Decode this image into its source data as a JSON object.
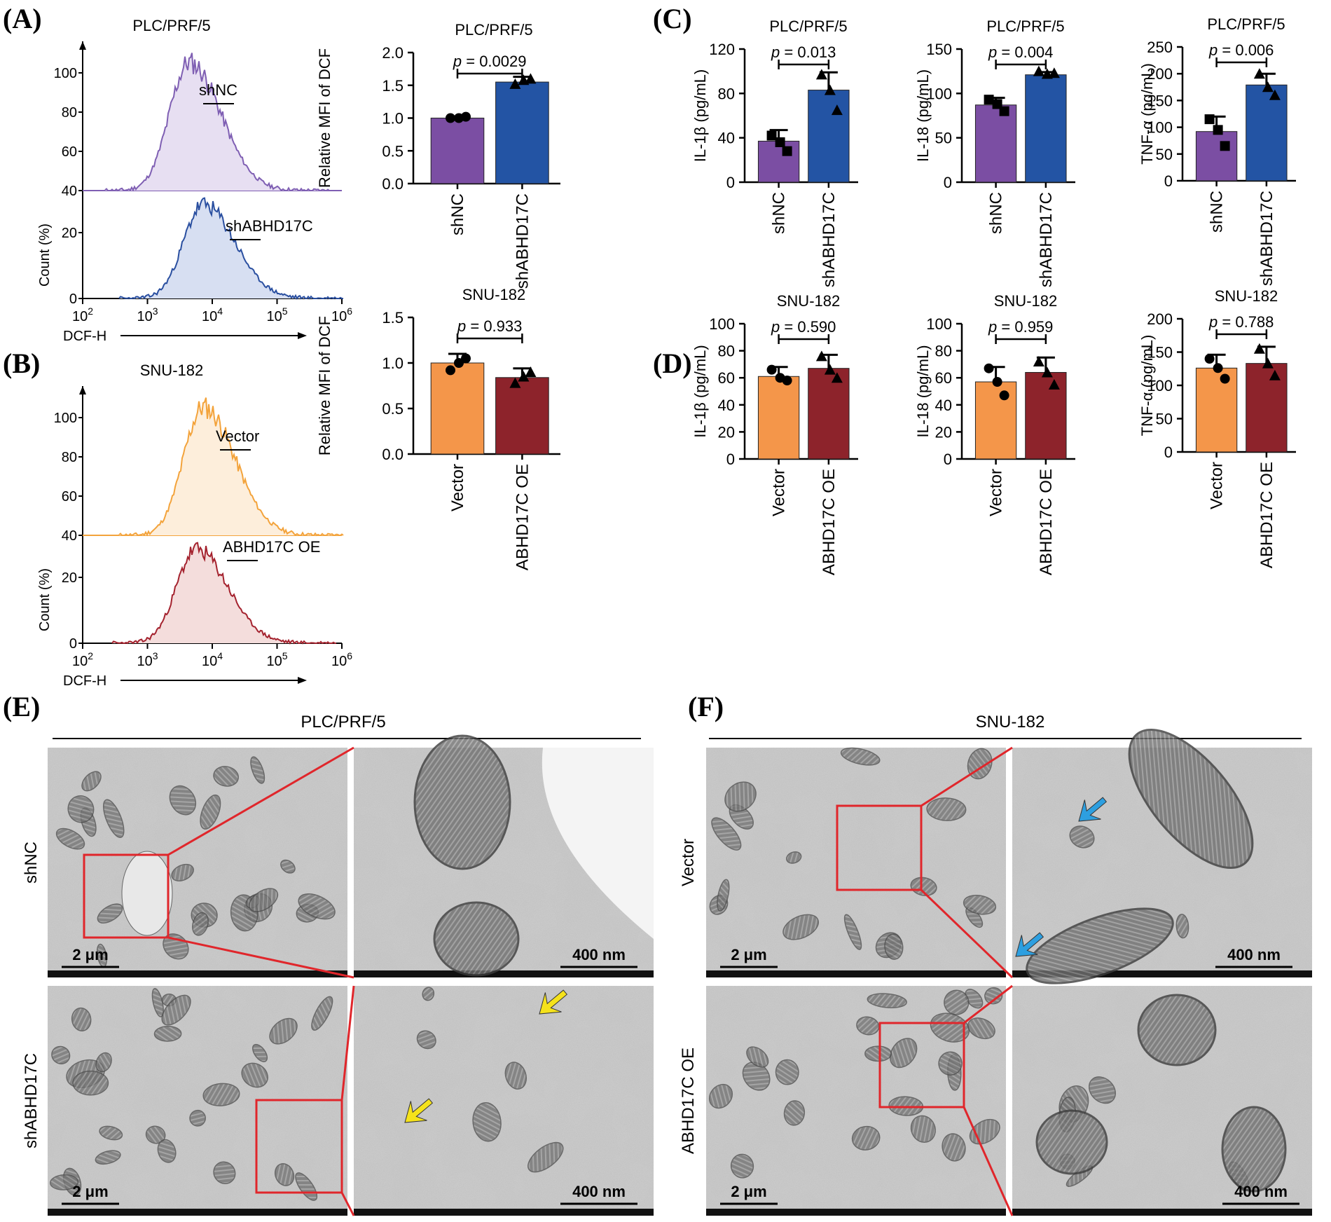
{
  "panels": [
    {
      "id": "A",
      "label": "(A)"
    },
    {
      "id": "B",
      "label": "(B)"
    },
    {
      "id": "C",
      "label": "(C)"
    },
    {
      "id": "D",
      "label": "(D)"
    },
    {
      "id": "E",
      "label": "(E)"
    },
    {
      "id": "F",
      "label": "(F)"
    }
  ],
  "colors": {
    "shNC": "#7b4ea3",
    "shABHD17C": "#2354a4",
    "vector": "#f4964a",
    "abhd17c_oe": "#8d232b",
    "hist_top_A": "#7f5fb3",
    "hist_bot_A": "#2a4fa0",
    "hist_top_B": "#f3a33b",
    "hist_bot_B": "#a4222e",
    "fill_top_A": "#e7dff2",
    "fill_bot_A": "#d7dff2",
    "fill_top_B": "#fdeedb",
    "fill_bot_B": "#f4dddc",
    "box": "#e0262b",
    "yellow_arrow": "#f5e21b",
    "blue_arrow": "#2d9fe0"
  },
  "chart_data": [
    {
      "id": "A-hist",
      "type": "histogram",
      "title": "PLC/PRF/5",
      "ylabel": "Count (%)",
      "xlabel": "DCF-H",
      "yticks_top": [
        "100",
        "80",
        "60",
        "40"
      ],
      "yticks_bottom": [
        "20",
        "0"
      ],
      "xticks": [
        {
          "base": "10",
          "exp": "2"
        },
        {
          "base": "10",
          "exp": "3"
        },
        {
          "base": "10",
          "exp": "4"
        },
        {
          "base": "10",
          "exp": "5"
        },
        {
          "base": "10",
          "exp": "6"
        }
      ],
      "series": [
        {
          "name": "shNC",
          "peak_log10": 3.7
        },
        {
          "name": "shABHD17C",
          "peak_log10": 3.9
        }
      ]
    },
    {
      "id": "A-bar",
      "type": "bar",
      "title": "PLC/PRF/5",
      "ylabel": "Relative MFI of DCF",
      "categories": [
        "shNC",
        "shABHD17C"
      ],
      "values": [
        1.0,
        1.55
      ],
      "errors": [
        0.02,
        0.08
      ],
      "points": [
        [
          1.0,
          1.0,
          1.02
        ],
        [
          1.52,
          1.58,
          1.6
        ]
      ],
      "markers": [
        "circle",
        "triangle"
      ],
      "yticks": [
        "0.0",
        "0.5",
        "1.0",
        "1.5",
        "2.0"
      ],
      "ylim": [
        0,
        2.0
      ],
      "p_label": "p = 0.0029"
    },
    {
      "id": "B-hist",
      "type": "histogram",
      "title": "SNU-182",
      "ylabel": "Count (%)",
      "xlabel": "DCF-H",
      "yticks_top": [
        "100",
        "80",
        "60",
        "40"
      ],
      "yticks_bottom": [
        "20",
        "0"
      ],
      "xticks": [
        {
          "base": "10",
          "exp": "2"
        },
        {
          "base": "10",
          "exp": "3"
        },
        {
          "base": "10",
          "exp": "4"
        },
        {
          "base": "10",
          "exp": "5"
        },
        {
          "base": "10",
          "exp": "6"
        }
      ],
      "series": [
        {
          "name": "Vector",
          "peak_log10": 3.9
        },
        {
          "name": "ABHD17C OE",
          "peak_log10": 3.85
        }
      ]
    },
    {
      "id": "B-bar",
      "type": "bar",
      "title": "SNU-182",
      "ylabel": "Relative MFI of DCF",
      "categories": [
        "Vector",
        "ABHD17C OE"
      ],
      "values": [
        1.0,
        0.84
      ],
      "errors": [
        0.1,
        0.1
      ],
      "points": [
        [
          0.92,
          1.0,
          1.05
        ],
        [
          0.78,
          0.85,
          0.9
        ]
      ],
      "markers": [
        "circle",
        "triangle"
      ],
      "yticks": [
        "0.0",
        "0.5",
        "1.0",
        "1.5"
      ],
      "ylim": [
        0,
        1.5
      ],
      "p_label": "p = 0.933"
    },
    {
      "id": "C1",
      "type": "bar",
      "title": "PLC/PRF/5",
      "ylabel": "IL-1β (pg/mL)",
      "categories": [
        "shNC",
        "shABHD17C"
      ],
      "values": [
        37,
        83
      ],
      "errors": [
        10,
        16
      ],
      "points": [
        [
          42,
          36,
          28
        ],
        [
          97,
          83,
          65
        ]
      ],
      "markers": [
        "square",
        "triangle"
      ],
      "yticks": [
        "0",
        "40",
        "80",
        "120"
      ],
      "ylim": [
        0,
        120
      ],
      "p_label": "p = 0.013"
    },
    {
      "id": "C2",
      "type": "bar",
      "title": "PLC/PRF/5",
      "ylabel": "IL-18 (pg/mL)",
      "categories": [
        "shNC",
        "shABHD17C"
      ],
      "values": [
        87,
        121
      ],
      "errors": [
        8,
        3
      ],
      "points": [
        [
          93,
          88,
          80
        ],
        [
          125,
          122,
          123
        ]
      ],
      "markers": [
        "square",
        "triangle"
      ],
      "yticks": [
        "0",
        "50",
        "100",
        "150"
      ],
      "ylim": [
        0,
        150
      ],
      "p_label": "p = 0.004"
    },
    {
      "id": "C3",
      "type": "bar",
      "title": "PLC/PRF/5",
      "ylabel": "TNF-α (pg/mL)",
      "categories": [
        "shNC",
        "shABHD17C"
      ],
      "values": [
        92,
        179
      ],
      "errors": [
        28,
        21
      ],
      "points": [
        [
          115,
          95,
          65
        ],
        [
          200,
          175,
          160
        ]
      ],
      "markers": [
        "square",
        "triangle"
      ],
      "yticks": [
        "0",
        "50",
        "100",
        "150",
        "200",
        "250"
      ],
      "ylim": [
        0,
        250
      ],
      "p_label": "p = 0.006"
    },
    {
      "id": "D1",
      "type": "bar",
      "title": "SNU-182",
      "ylabel": "IL-1β (pg/mL)",
      "categories": [
        "Vector",
        "ABHD17C OE"
      ],
      "values": [
        61,
        67
      ],
      "errors": [
        7,
        10
      ],
      "points": [
        [
          66,
          60,
          58
        ],
        [
          76,
          66,
          60
        ]
      ],
      "markers": [
        "circle",
        "triangle"
      ],
      "yticks": [
        "0",
        "20",
        "40",
        "60",
        "80",
        "100"
      ],
      "ylim": [
        0,
        100
      ],
      "p_label": "p = 0.590"
    },
    {
      "id": "D2",
      "type": "bar",
      "title": "SNU-182",
      "ylabel": "IL-18 (pg/mL)",
      "categories": [
        "Vector",
        "ABHD17C OE"
      ],
      "values": [
        57,
        64
      ],
      "errors": [
        11,
        11
      ],
      "points": [
        [
          67,
          57,
          47
        ],
        [
          72,
          64,
          55
        ]
      ],
      "markers": [
        "circle",
        "triangle"
      ],
      "yticks": [
        "0",
        "20",
        "40",
        "60",
        "80",
        "100"
      ],
      "ylim": [
        0,
        100
      ],
      "p_label": "p = 0.959"
    },
    {
      "id": "D3",
      "type": "bar",
      "title": "SNU-182",
      "ylabel": "TNF-α (pg/mL)",
      "categories": [
        "Vector",
        "ABHD17C OE"
      ],
      "values": [
        126,
        133
      ],
      "errors": [
        20,
        25
      ],
      "points": [
        [
          140,
          126,
          110
        ],
        [
          155,
          133,
          115
        ]
      ],
      "markers": [
        "circle",
        "triangle"
      ],
      "yticks": [
        "0",
        "50",
        "100",
        "150",
        "200"
      ],
      "ylim": [
        0,
        200
      ],
      "p_label": "p = 0.788"
    }
  ],
  "tem": {
    "E": {
      "header": "PLC/PRF/5",
      "rows": [
        {
          "label": "shNC"
        },
        {
          "label": "shABHD17C"
        }
      ],
      "scale_low": "2 μm",
      "scale_high": "400 nm"
    },
    "F": {
      "header": "SNU-182",
      "rows": [
        {
          "label": "Vector"
        },
        {
          "label": "ABHD17C OE"
        }
      ],
      "scale_low": "2 μm",
      "scale_high": "400 nm"
    }
  }
}
